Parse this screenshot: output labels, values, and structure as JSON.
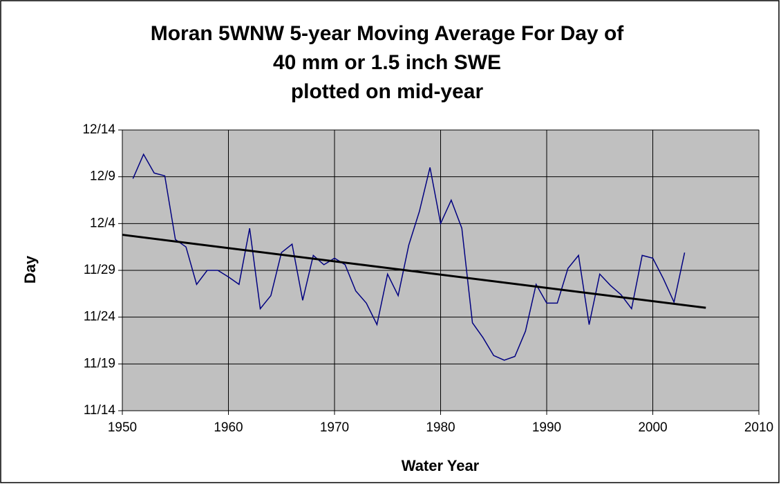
{
  "chart_data": {
    "type": "line",
    "title": [
      "Moran 5WNW 5-year Moving Average For Day of",
      "40 mm or 1.5 inch SWE",
      "plotted on mid-year"
    ],
    "x_label": "Water Year",
    "y_label": "Day",
    "x": [
      1951,
      1952,
      1953,
      1954,
      1955,
      1956,
      1957,
      1958,
      1959,
      1960,
      1961,
      1962,
      1963,
      1964,
      1965,
      1966,
      1967,
      1968,
      1969,
      1970,
      1971,
      1972,
      1973,
      1974,
      1975,
      1976,
      1977,
      1978,
      1979,
      1980,
      1981,
      1982,
      1983,
      1984,
      1985,
      1986,
      1987,
      1988,
      1989,
      1990,
      1991,
      1992,
      1993,
      1994,
      1995,
      1996,
      1997,
      1998,
      1999,
      2000,
      2001,
      2002,
      2003
    ],
    "series": [
      {
        "color": "#000080",
        "values": [
          38.8,
          41.4,
          39.4,
          39.1,
          32.3,
          31.5,
          27.5,
          29.0,
          29.0,
          28.3,
          27.5,
          33.5,
          24.9,
          26.3,
          30.9,
          31.8,
          25.8,
          30.6,
          29.6,
          30.3,
          29.6,
          26.8,
          25.5,
          23.2,
          28.6,
          26.3,
          31.7,
          35.3,
          40.0,
          34.0,
          36.5,
          33.5,
          23.4,
          21.8,
          19.9,
          19.4,
          19.8,
          22.5,
          27.5,
          25.5,
          25.5,
          29.2,
          30.6,
          23.2,
          28.6,
          27.4,
          26.4,
          24.9,
          30.6,
          30.3,
          28.1,
          25.6,
          30.9
        ]
      }
    ],
    "trendline": {
      "x": [
        1950,
        2005
      ],
      "values": [
        32.8,
        25.0
      ],
      "color": "#000000"
    },
    "xlim": [
      1950,
      2010
    ],
    "xticks": [
      1950,
      1960,
      1970,
      1980,
      1990,
      2000,
      2010
    ],
    "ylim": [
      14,
      44
    ],
    "yticks": [
      {
        "value": 14,
        "label": "11/14"
      },
      {
        "value": 19,
        "label": "11/19"
      },
      {
        "value": 24,
        "label": "11/24"
      },
      {
        "value": 29,
        "label": "11/29"
      },
      {
        "value": 34,
        "label": "12/4"
      },
      {
        "value": 39,
        "label": "12/9"
      },
      {
        "value": 44,
        "label": "12/14"
      }
    ],
    "grid": true,
    "plot_background": "#c0c0c0"
  }
}
